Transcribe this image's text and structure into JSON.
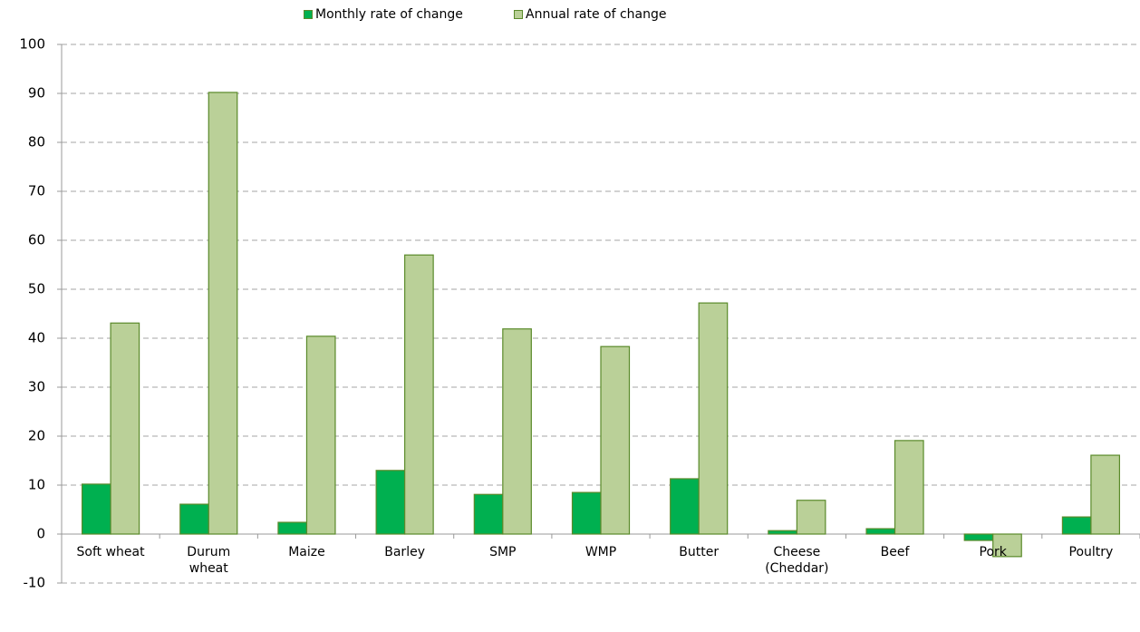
{
  "chart_data": {
    "type": "bar",
    "categories": [
      "Soft wheat",
      "Durum\nwheat",
      "Maize",
      "Barley",
      "SMP",
      "WMP",
      "Butter",
      "Cheese\n(Cheddar)",
      "Beef",
      "Pork",
      "Poultry"
    ],
    "series": [
      {
        "name": "Monthly rate of change",
        "color": "#00b050",
        "values": [
          10.2,
          6.1,
          2.4,
          13.0,
          8.1,
          8.5,
          11.3,
          0.7,
          1.1,
          -1.3,
          3.5
        ]
      },
      {
        "name": "Annual rate of change",
        "color": "#bad098",
        "values": [
          43.1,
          90.2,
          40.4,
          57.0,
          41.9,
          38.3,
          47.2,
          6.9,
          19.1,
          -4.6,
          16.1
        ]
      }
    ],
    "ylim": [
      -10,
      100
    ],
    "yticks": [
      -10,
      0,
      10,
      20,
      30,
      40,
      50,
      60,
      70,
      80,
      90,
      100
    ],
    "grid": true
  }
}
